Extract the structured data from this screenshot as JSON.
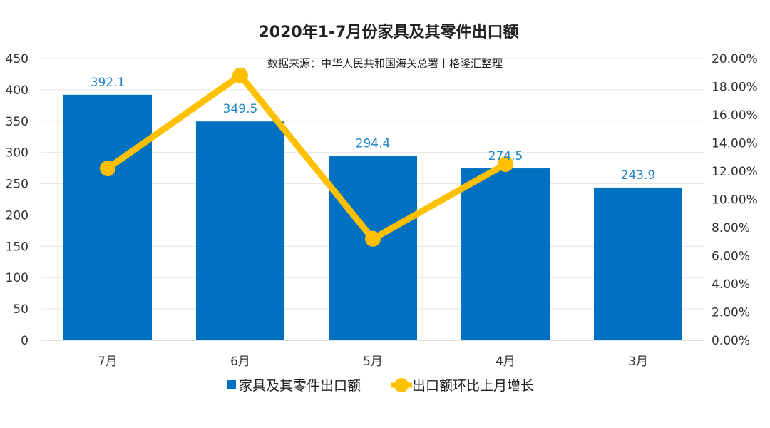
{
  "chart_data": {
    "type": "bar+line",
    "title": "2020年1-7月份家具及其零件出口额",
    "subtitle": "数据来源：中华人民共和国海关总署丨格隆汇整理",
    "categories": [
      "7月",
      "6月",
      "5月",
      "4月",
      "3月"
    ],
    "series": [
      {
        "name": "家具及其零件出口额",
        "type": "bar",
        "axis": "left",
        "values": [
          392.1,
          349.5,
          294.4,
          274.5,
          243.9
        ],
        "labels": [
          "392.1",
          "349.5",
          "294.4",
          "274.5",
          "243.9"
        ],
        "color": "#0070c0"
      },
      {
        "name": "出口额环比上月增长",
        "type": "line",
        "axis": "right",
        "values": [
          12.2,
          18.8,
          7.2,
          12.5,
          null
        ],
        "color": "#ffc000"
      }
    ],
    "y_left": {
      "min": 0,
      "max": 450,
      "step": 50,
      "ticks": [
        "0",
        "50",
        "100",
        "150",
        "200",
        "250",
        "300",
        "350",
        "400",
        "450"
      ]
    },
    "y_right": {
      "min": 0,
      "max": 20,
      "step": 2,
      "ticks": [
        "0.00%",
        "2.00%",
        "4.00%",
        "6.00%",
        "8.00%",
        "10.00%",
        "12.00%",
        "14.00%",
        "16.00%",
        "18.00%",
        "20.00%"
      ]
    },
    "grid": true,
    "legend_position": "bottom"
  }
}
